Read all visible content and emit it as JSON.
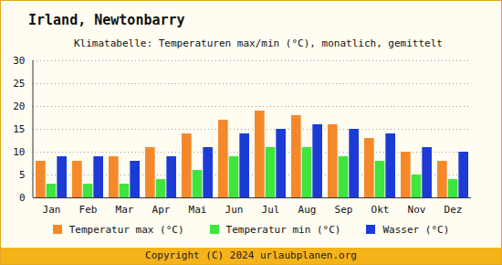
{
  "chart_data": {
    "type": "bar",
    "title": "Irland, Newtonbarry",
    "subtitle": "Klimatabelle: Temperaturen max/min (°C), monatlich, gemittelt",
    "caption": "Copyright (C) 2024 urlaubplanen.org",
    "categories": [
      "Jan",
      "Feb",
      "Mar",
      "Apr",
      "Mai",
      "Jun",
      "Jul",
      "Aug",
      "Sep",
      "Okt",
      "Nov",
      "Dez"
    ],
    "series": [
      {
        "name": "Temperatur max (°C)",
        "color": "#f5892a",
        "values": [
          8,
          8,
          9,
          11,
          14,
          17,
          19,
          18,
          16,
          13,
          10,
          8
        ]
      },
      {
        "name": "Temperatur min (°C)",
        "color": "#3ee53e",
        "values": [
          3,
          3,
          3,
          4,
          6,
          9,
          11,
          11,
          9,
          8,
          5,
          4
        ]
      },
      {
        "name": "Wasser (°C)",
        "color": "#1c3bd6",
        "values": [
          9,
          9,
          8,
          9,
          11,
          14,
          15,
          16,
          15,
          14,
          11,
          10
        ]
      }
    ],
    "ylim": [
      0,
      30
    ],
    "yticks": [
      0,
      5,
      10,
      15,
      20,
      25,
      30
    ],
    "grid": true,
    "legend": "bottom"
  }
}
